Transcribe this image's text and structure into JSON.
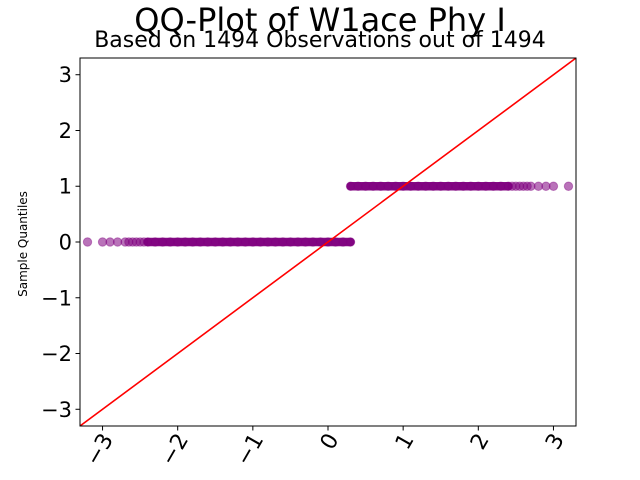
{
  "chart_data": {
    "type": "scatter",
    "title": "QQ-Plot of W1ace Phy I",
    "subtitle": "Based on 1494 Observations out of 1494",
    "xlabel": "",
    "ylabel": "Sample Quantiles",
    "xlim": [
      -3.3,
      3.3
    ],
    "ylim": [
      -3.3,
      3.3
    ],
    "x_ticks": [
      -3,
      -2,
      -1,
      0,
      1,
      2,
      3
    ],
    "y_ticks": [
      -3,
      -2,
      -1,
      0,
      1,
      2,
      3
    ],
    "x_tick_labels": [
      "−3",
      "−2",
      "−1",
      "0",
      "1",
      "2",
      "3"
    ],
    "y_tick_labels": [
      "−3",
      "−2",
      "−1",
      "0",
      "1",
      "2",
      "3"
    ],
    "grid": false,
    "point_color": "#800080",
    "reference_line_color": "#ff0000",
    "reference_line": {
      "slope": 1,
      "intercept": 0
    },
    "series": [
      {
        "values_at_0": [
          -3.2,
          -3.0,
          -2.9,
          -2.8,
          -2.7,
          -2.65,
          -2.6,
          -2.55,
          -2.5,
          -2.45,
          -2.4,
          -2.3,
          -2.2,
          -2.1,
          -2.0,
          -1.9,
          -1.8,
          -1.7,
          -1.6,
          -1.5,
          -1.4,
          -1.3,
          -1.2,
          -1.1,
          -1.0,
          -0.9,
          -0.8,
          -0.7,
          -0.6,
          -0.5,
          -0.4,
          -0.3,
          -0.2,
          -0.1,
          0.0,
          0.1,
          0.2,
          0.3
        ],
        "values_at_1": [
          0.3,
          0.4,
          0.5,
          0.6,
          0.7,
          0.8,
          0.9,
          1.0,
          1.1,
          1.2,
          1.3,
          1.4,
          1.5,
          1.6,
          1.7,
          1.8,
          1.9,
          2.0,
          2.1,
          2.2,
          2.3,
          2.4,
          2.45,
          2.5,
          2.55,
          2.6,
          2.65,
          2.7,
          2.8,
          2.9,
          3.0,
          3.2
        ]
      }
    ]
  }
}
